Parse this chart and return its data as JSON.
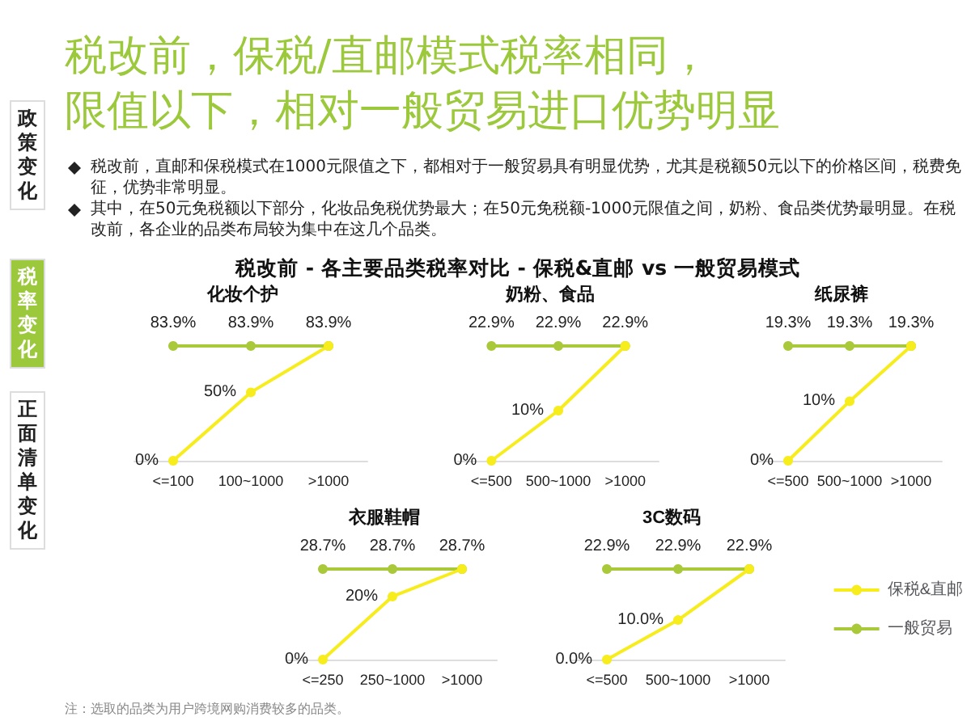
{
  "chart_data": [
    {
      "type": "other",
      "title": "税改前，保税/直邮模式税率相同，",
      "subtitle": "限值以下，相对一般贸易进口优势明显",
      "annotations": [
        "税改前 - 各主要品类税率对比 - 保税&直邮 vs 一般贸易模式",
        "政策变化",
        "税率变化",
        "正面清单变化",
        "税改前，直邮和保税模式在1000元限值之下，都相对于一般贸易具有明显优势，尤其是税额50元以下的价格区间，税费免征，优势非常明显。",
        "其中，在50元免税额以下部分，化妆品免税优势最大；在50元免税额-1000元限值之间，奶粉、食品类优势最明显。在税改前，各企业的品类布局较为集中在这几个品类。",
        "注：选取的品类为用户跨境网购消费较多的品类。"
      ]
    },
    {
      "type": "line",
      "title": "化妆个护",
      "categories": [
        "<=100",
        "100~1000",
        ">1000"
      ],
      "marker": "circle",
      "legend": false,
      "data_labels": true,
      "series": [
        {
          "color": "#f7ec1c",
          "values": [
            0,
            50,
            83.9
          ],
          "value_labels": [
            "0%",
            "50%",
            null
          ]
        },
        {
          "color": "#a9c93a",
          "values": [
            83.9,
            83.9,
            83.9
          ],
          "value_labels": [
            "83.9%",
            "83.9%",
            "83.9%"
          ]
        }
      ]
    },
    {
      "type": "line",
      "title": "奶粉、食品",
      "categories": [
        "<=500",
        "500~1000",
        ">1000"
      ],
      "marker": "circle",
      "legend": false,
      "data_labels": true,
      "series": [
        {
          "color": "#f7ec1c",
          "values": [
            0,
            10,
            22.9
          ],
          "value_labels": [
            "0%",
            "10%",
            null
          ]
        },
        {
          "color": "#a9c93a",
          "values": [
            22.9,
            22.9,
            22.9
          ],
          "value_labels": [
            "22.9%",
            "22.9%",
            "22.9%"
          ]
        }
      ]
    },
    {
      "type": "line",
      "title": "纸尿裤",
      "categories": [
        "<=500",
        "500~1000",
        ">1000"
      ],
      "marker": "circle",
      "legend": false,
      "data_labels": true,
      "series": [
        {
          "color": "#f7ec1c",
          "values": [
            0,
            10,
            19.3
          ],
          "value_labels": [
            "0%",
            "10%",
            null
          ]
        },
        {
          "color": "#a9c93a",
          "values": [
            19.3,
            19.3,
            19.3
          ],
          "value_labels": [
            "19.3%",
            "19.3%",
            "19.3%"
          ]
        }
      ]
    },
    {
      "type": "line",
      "title": "衣服鞋帽",
      "categories": [
        "<=250",
        "250~1000",
        ">1000"
      ],
      "marker": "circle",
      "legend": false,
      "data_labels": true,
      "series": [
        {
          "color": "#f7ec1c",
          "values": [
            0,
            20,
            28.7
          ],
          "value_labels": [
            "0%",
            "20%",
            null
          ]
        },
        {
          "color": "#a9c93a",
          "values": [
            28.7,
            28.7,
            28.7
          ],
          "value_labels": [
            "28.7%",
            "28.7%",
            "28.7%"
          ]
        }
      ]
    },
    {
      "type": "line",
      "title": "3C数码",
      "categories": [
        "<=500",
        "500~1000",
        ">1000"
      ],
      "marker": "circle",
      "legend": "right",
      "data_labels": true,
      "series": [
        {
          "name": "保税&直邮",
          "color": "#f7ec1c",
          "values": [
            0.0,
            10.0,
            22.9
          ],
          "value_labels": [
            "0.0%",
            "10.0%",
            null
          ]
        },
        {
          "name": "一般贸易",
          "color": "#a9c93a",
          "values": [
            22.9,
            22.9,
            22.9
          ],
          "value_labels": [
            "22.9%",
            "22.9%",
            "22.9%"
          ]
        }
      ]
    }
  ]
}
